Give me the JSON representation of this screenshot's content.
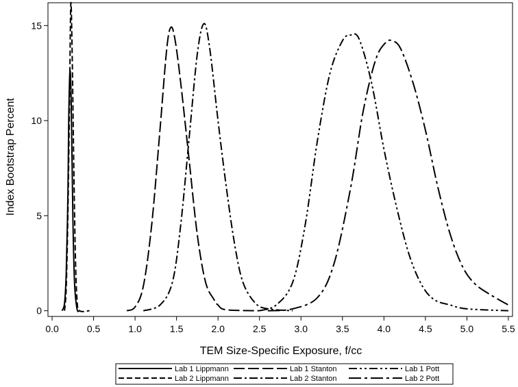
{
  "chart_data": {
    "type": "line",
    "title": "",
    "xlabel": "TEM Size-Specific Exposure, f/cc",
    "ylabel": "Index Bootstrap Percent",
    "xlim": [
      -0.05,
      5.55
    ],
    "ylim": [
      -0.3,
      16.2
    ],
    "x_ticks": [
      "0.0",
      "0.5",
      "1.0",
      "1.5",
      "2.0",
      "2.5",
      "3.0",
      "3.5",
      "4.0",
      "4.5",
      "5.0",
      "5.5"
    ],
    "y_ticks": [
      "0",
      "5",
      "10",
      "15"
    ],
    "grid": false,
    "legend_position": "bottom",
    "series": [
      {
        "name": "Lab 1 Lippmann",
        "dash": "solid",
        "points": [
          [
            0.12,
            0
          ],
          [
            0.15,
            0.4
          ],
          [
            0.17,
            2
          ],
          [
            0.19,
            6
          ],
          [
            0.2,
            10
          ],
          [
            0.215,
            12.6
          ],
          [
            0.23,
            11
          ],
          [
            0.25,
            5
          ],
          [
            0.27,
            1.5
          ],
          [
            0.3,
            0.1
          ],
          [
            0.33,
            0
          ]
        ]
      },
      {
        "name": "Lab 2 Lippmann",
        "dash": "dashed",
        "points": [
          [
            0.15,
            0
          ],
          [
            0.17,
            1.2
          ],
          [
            0.19,
            5
          ],
          [
            0.21,
            11
          ],
          [
            0.225,
            16.1
          ],
          [
            0.24,
            14
          ],
          [
            0.26,
            8
          ],
          [
            0.28,
            3
          ],
          [
            0.3,
            0.6
          ],
          [
            0.33,
            0
          ],
          [
            0.45,
            0
          ]
        ]
      },
      {
        "name": "Lab 1 Stanton",
        "dash": "long-dash",
        "points": [
          [
            0.9,
            0
          ],
          [
            1.0,
            0.2
          ],
          [
            1.1,
            1.3
          ],
          [
            1.2,
            4.5
          ],
          [
            1.3,
            9.5
          ],
          [
            1.38,
            13.7
          ],
          [
            1.43,
            14.9
          ],
          [
            1.48,
            14.3
          ],
          [
            1.55,
            12
          ],
          [
            1.65,
            8
          ],
          [
            1.75,
            4
          ],
          [
            1.85,
            1.5
          ],
          [
            1.95,
            0.6
          ],
          [
            2.0,
            0.3
          ],
          [
            2.1,
            0.05
          ],
          [
            2.5,
            0
          ]
        ]
      },
      {
        "name": "Lab 2 Stanton",
        "dash": "dash-dot",
        "points": [
          [
            1.1,
            0
          ],
          [
            1.3,
            0.3
          ],
          [
            1.45,
            1.5
          ],
          [
            1.55,
            4.5
          ],
          [
            1.65,
            9
          ],
          [
            1.75,
            13.5
          ],
          [
            1.83,
            15.1
          ],
          [
            1.9,
            13.8
          ],
          [
            2.0,
            10
          ],
          [
            2.1,
            6.5
          ],
          [
            2.2,
            3.5
          ],
          [
            2.3,
            1.5
          ],
          [
            2.45,
            0.4
          ],
          [
            2.6,
            0.1
          ],
          [
            2.9,
            0
          ]
        ]
      },
      {
        "name": "Lab 1 Pott",
        "dash": "dash-dot-dot",
        "points": [
          [
            2.5,
            0
          ],
          [
            2.7,
            0.3
          ],
          [
            2.9,
            1.5
          ],
          [
            3.05,
            4.5
          ],
          [
            3.2,
            9
          ],
          [
            3.35,
            12.5
          ],
          [
            3.5,
            14.2
          ],
          [
            3.6,
            14.5
          ],
          [
            3.7,
            14.3
          ],
          [
            3.85,
            12
          ],
          [
            4.0,
            8.5
          ],
          [
            4.15,
            5.5
          ],
          [
            4.3,
            3
          ],
          [
            4.45,
            1.4
          ],
          [
            4.6,
            0.6
          ],
          [
            4.8,
            0.3
          ],
          [
            5.0,
            0.1
          ],
          [
            5.5,
            0
          ]
        ]
      },
      {
        "name": "Lab 2 Pott",
        "dash": "long-dash-dot",
        "points": [
          [
            2.6,
            0
          ],
          [
            2.9,
            0.1
          ],
          [
            3.2,
            0.7
          ],
          [
            3.4,
            2.5
          ],
          [
            3.6,
            6.5
          ],
          [
            3.75,
            10.5
          ],
          [
            3.9,
            13.2
          ],
          [
            4.02,
            14.1
          ],
          [
            4.1,
            14.2
          ],
          [
            4.2,
            13.8
          ],
          [
            4.35,
            12
          ],
          [
            4.5,
            9.5
          ],
          [
            4.65,
            6.5
          ],
          [
            4.8,
            4
          ],
          [
            4.95,
            2.3
          ],
          [
            5.1,
            1.4
          ],
          [
            5.3,
            0.8
          ],
          [
            5.5,
            0.3
          ]
        ]
      }
    ]
  }
}
